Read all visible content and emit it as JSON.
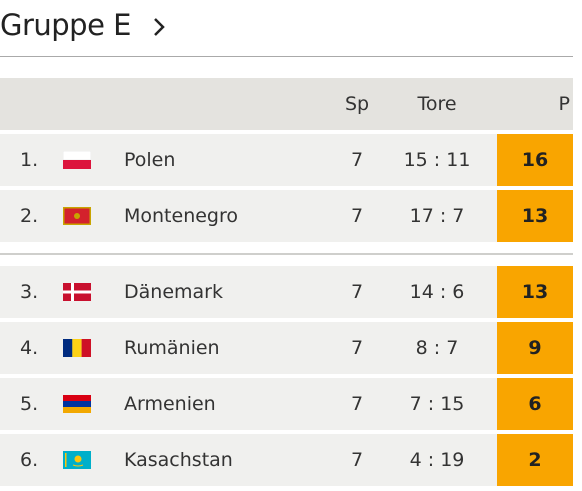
{
  "header": {
    "title": "Gruppe E"
  },
  "table": {
    "columns": [
      "Sp",
      "Tore",
      "P"
    ],
    "rows": [
      [
        "1.",
        "Polen",
        7,
        "15 : 11",
        16
      ],
      [
        "2.",
        "Montenegro",
        7,
        "17 : 7",
        13
      ],
      [
        "3.",
        "Dänemark",
        7,
        "14 : 6",
        13
      ],
      [
        "4.",
        "Rumänien",
        7,
        "8 : 7",
        9
      ],
      [
        "5.",
        "Armenien",
        7,
        "7 : 15",
        6
      ],
      [
        "6.",
        "Kasachstan",
        7,
        "4 : 19",
        2
      ]
    ]
  }
}
